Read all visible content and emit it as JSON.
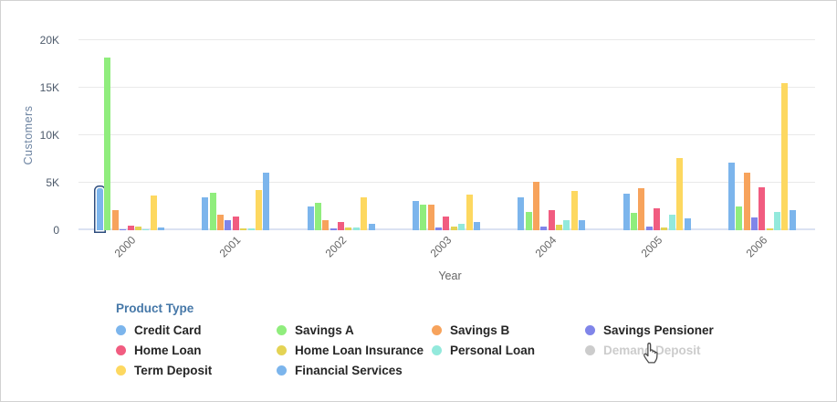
{
  "chart_data": {
    "type": "bar",
    "title": "",
    "xlabel": "Year",
    "ylabel": "Customers",
    "categories": [
      "2000",
      "2001",
      "2002",
      "2003",
      "2004",
      "2005",
      "2006"
    ],
    "y_ticks": [
      "0",
      "5K",
      "10K",
      "15K",
      "20K"
    ],
    "ylim": [
      0,
      20000
    ],
    "grid": true,
    "legend_position": "bottom",
    "legend_title": "Product Type",
    "series": [
      {
        "name": "Credit Card",
        "color": "#7CB5EC",
        "visible": true,
        "values": [
          4400,
          3500,
          2500,
          3050,
          3450,
          3850,
          7150
        ]
      },
      {
        "name": "Savings A",
        "color": "#90ED7D",
        "visible": true,
        "values": [
          18200,
          3950,
          2850,
          2700,
          1900,
          1850,
          2500
        ]
      },
      {
        "name": "Savings B",
        "color": "#F7A35C",
        "visible": true,
        "values": [
          2100,
          1650,
          1050,
          2700,
          5100,
          4450,
          6100
        ]
      },
      {
        "name": "Savings Pensioner",
        "color": "#8085E9",
        "visible": true,
        "values": [
          50,
          1050,
          200,
          300,
          350,
          400,
          1300
        ]
      },
      {
        "name": "Home Loan",
        "color": "#F15C80",
        "visible": true,
        "values": [
          500,
          1450,
          900,
          1450,
          2100,
          2350,
          4550
        ]
      },
      {
        "name": "Home Loan Insurance",
        "color": "#E4D354",
        "visible": true,
        "values": [
          350,
          150,
          250,
          350,
          550,
          300,
          150
        ]
      },
      {
        "name": "Personal Loan",
        "color": "#93E9DC",
        "visible": true,
        "values": [
          60,
          200,
          250,
          700,
          1100,
          1600,
          1950
        ]
      },
      {
        "name": "Demand Deposit",
        "color": "#CCCCCC",
        "visible": false,
        "values": null
      },
      {
        "name": "Term Deposit",
        "color": "#FDD860",
        "visible": true,
        "values": [
          3700,
          4200,
          3450,
          3750,
          4100,
          7550,
          15500
        ]
      },
      {
        "name": "Financial Services",
        "color": "#7CB5EC",
        "visible": true,
        "values": [
          250,
          6050,
          650,
          900,
          1100,
          1250,
          2150
        ]
      }
    ],
    "highlighted_bar": {
      "series": "Credit Card",
      "category": "2000",
      "outline_color": "#2E4D7E"
    }
  },
  "cursor": {
    "type": "hand-pointer",
    "over": "Demand Deposit"
  }
}
